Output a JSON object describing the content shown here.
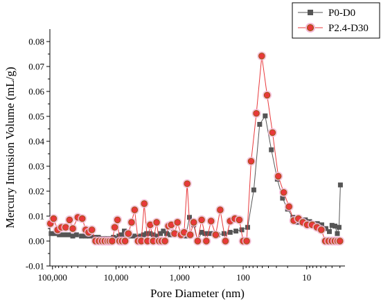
{
  "chart_data": {
    "type": "line",
    "xlabel": "Pore Diameter (nm)",
    "ylabel": "Mercury Intrusion Volume (mL/g)",
    "x_scale": "log",
    "x_reversed": true,
    "xlim": [
      110000,
      2.5
    ],
    "ylim": [
      -0.01,
      0.085
    ],
    "x_ticks": [
      100000,
      10000,
      1000,
      100,
      10
    ],
    "x_tick_labels": [
      "100,000",
      "10,000",
      "1,000",
      "100",
      "10"
    ],
    "y_ticks": [
      -0.01,
      0,
      0.01,
      0.02,
      0.03,
      0.04,
      0.05,
      0.06,
      0.07,
      0.08
    ],
    "y_tick_labels": [
      "-0.01",
      "0.00",
      "0.01",
      "0.02",
      "0.03",
      "0.04",
      "0.05",
      "0.06",
      "0.07",
      "0.08"
    ],
    "grid": false,
    "legend_position": "top-right",
    "series": [
      {
        "name": "P0-D0",
        "color": "#555555",
        "marker": "square",
        "points": [
          [
            105000,
            0.003
          ],
          [
            90000,
            0.003
          ],
          [
            78000,
            0.0025
          ],
          [
            66000,
            0.0025
          ],
          [
            56000,
            0.0025
          ],
          [
            48000,
            0.002
          ],
          [
            42000,
            0.0025
          ],
          [
            35000,
            0.002
          ],
          [
            30000,
            0.002
          ],
          [
            26000,
            0.002
          ],
          [
            22000,
            0.0015
          ],
          [
            19000,
            0.0015
          ],
          [
            16000,
            0.001
          ],
          [
            14000,
            0.001
          ],
          [
            12000,
            0.001
          ],
          [
            11000,
            0.0015
          ],
          [
            10000,
            0.001
          ],
          [
            9000,
            0.002
          ],
          [
            8200,
            0.0025
          ],
          [
            7400,
            0.004
          ],
          [
            6800,
            0.0025
          ],
          [
            6000,
            0.002
          ],
          [
            5200,
            0.002
          ],
          [
            4600,
            0.0015
          ],
          [
            4100,
            0.002
          ],
          [
            3700,
            0.0025
          ],
          [
            3300,
            0.003
          ],
          [
            2900,
            0.003
          ],
          [
            2600,
            0.0025
          ],
          [
            2300,
            0.002
          ],
          [
            2000,
            0.003
          ],
          [
            1800,
            0.004
          ],
          [
            1600,
            0.003
          ],
          [
            1400,
            0.0025
          ],
          [
            1250,
            0.0035
          ],
          [
            1100,
            0.003
          ],
          [
            1000,
            0.003
          ],
          [
            900,
            0.003
          ],
          [
            800,
            0.002
          ],
          [
            700,
            0.0095
          ],
          [
            600,
            0.0065
          ],
          [
            520,
            0.0
          ],
          [
            450,
            0.0035
          ],
          [
            400,
            0.003
          ],
          [
            340,
            0.003
          ],
          [
            290,
            0.003
          ],
          [
            250,
            0.0025
          ],
          [
            200,
            0.003
          ],
          [
            160,
            0.0035
          ],
          [
            130,
            0.004
          ],
          [
            105,
            0.0045
          ],
          [
            85,
            0.0055
          ],
          [
            68,
            0.0205
          ],
          [
            55,
            0.0468
          ],
          [
            45,
            0.0502
          ],
          [
            36,
            0.0366
          ],
          [
            29,
            0.0248
          ],
          [
            24,
            0.0172
          ],
          [
            20,
            0.0128
          ],
          [
            16.5,
            0.0095
          ],
          [
            14,
            0.0075
          ],
          [
            12,
            0.0075
          ],
          [
            10.5,
            0.0085
          ],
          [
            9,
            0.0078
          ],
          [
            7.8,
            0.007
          ],
          [
            6.8,
            0.007
          ],
          [
            5.8,
            0.0065
          ],
          [
            5.0,
            0.005
          ],
          [
            4.4,
            0.0038
          ],
          [
            4.0,
            0.0063
          ],
          [
            3.6,
            0.006
          ],
          [
            3.3,
            0.003
          ],
          [
            3.1,
            0.0055
          ],
          [
            2.95,
            0.0225
          ]
        ]
      },
      {
        "name": "P2.4-D30",
        "color": "#e8383b",
        "marker": "circle",
        "points": [
          [
            108000,
            0.007
          ],
          [
            96000,
            0.009
          ],
          [
            83000,
            0.0045
          ],
          [
            72000,
            0.0055
          ],
          [
            62000,
            0.0055
          ],
          [
            54000,
            0.0085
          ],
          [
            48000,
            0.005
          ],
          [
            40000,
            0.0095
          ],
          [
            34000,
            0.009
          ],
          [
            30000,
            0.0045
          ],
          [
            27000,
            0.0035
          ],
          [
            24000,
            0.0045
          ],
          [
            21000,
            0.0
          ],
          [
            18500,
            0.0
          ],
          [
            16500,
            0.0
          ],
          [
            15000,
            0.0
          ],
          [
            13500,
            0.0
          ],
          [
            12500,
            0.0
          ],
          [
            11500,
            0.0
          ],
          [
            10500,
            0.0055
          ],
          [
            9500,
            0.0085
          ],
          [
            8800,
            0.0
          ],
          [
            8000,
            0.0
          ],
          [
            7200,
            0.0
          ],
          [
            6400,
            0.003
          ],
          [
            5700,
            0.0075
          ],
          [
            5100,
            0.0125
          ],
          [
            4500,
            0.0
          ],
          [
            4000,
            0.0
          ],
          [
            3600,
            0.015
          ],
          [
            3200,
            0.0
          ],
          [
            2900,
            0.0065
          ],
          [
            2600,
            0.0
          ],
          [
            2300,
            0.0075
          ],
          [
            2100,
            0.0
          ],
          [
            1900,
            0.0
          ],
          [
            1700,
            0.0
          ],
          [
            1500,
            0.006
          ],
          [
            1350,
            0.0065
          ],
          [
            1200,
            0.003
          ],
          [
            1080,
            0.0075
          ],
          [
            950,
            0.0025
          ],
          [
            850,
            0.0035
          ],
          [
            760,
            0.023
          ],
          [
            680,
            0.0025
          ],
          [
            600,
            0.0075
          ],
          [
            520,
            0.0
          ],
          [
            450,
            0.0085
          ],
          [
            380,
            0.0
          ],
          [
            320,
            0.008
          ],
          [
            270,
            0.0025
          ],
          [
            230,
            0.0125
          ],
          [
            190,
            0.0
          ],
          [
            160,
            0.008
          ],
          [
            135,
            0.009
          ],
          [
            115,
            0.0085
          ],
          [
            100,
            0.0
          ],
          [
            88,
            0.0
          ],
          [
            75,
            0.032
          ],
          [
            62,
            0.0512
          ],
          [
            51,
            0.0742
          ],
          [
            42,
            0.0585
          ],
          [
            34.5,
            0.0435
          ],
          [
            28,
            0.026
          ],
          [
            23,
            0.0195
          ],
          [
            19,
            0.0138
          ],
          [
            16,
            0.0082
          ],
          [
            13.5,
            0.009
          ],
          [
            11.5,
            0.0075
          ],
          [
            9.8,
            0.0065
          ],
          [
            8.2,
            0.0065
          ],
          [
            6.9,
            0.0055
          ],
          [
            5.9,
            0.0045
          ],
          [
            5.1,
            0.0
          ],
          [
            4.5,
            0.0
          ],
          [
            4.0,
            0.0
          ],
          [
            3.6,
            0.0
          ],
          [
            3.25,
            0.0
          ],
          [
            3.0,
            0.0
          ]
        ]
      }
    ]
  }
}
